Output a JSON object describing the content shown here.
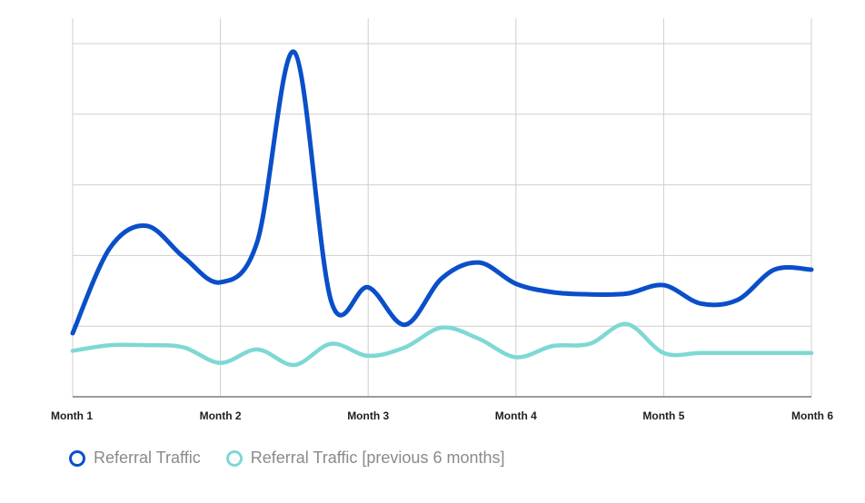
{
  "chart_data": {
    "type": "line",
    "title": "",
    "xlabel": "",
    "ylabel": "",
    "categories": [
      "Month 1",
      "Month 2",
      "Month 3",
      "Month 4",
      "Month 5",
      "Month 6"
    ],
    "x": [
      0,
      0.25,
      0.5,
      0.75,
      1,
      1.25,
      1.5,
      1.75,
      2,
      2.25,
      2.5,
      2.75,
      3,
      3.25,
      3.5,
      3.75,
      4,
      4.25,
      4.5,
      4.75,
      5
    ],
    "xlim": [
      0,
      5
    ],
    "ylim": [
      0,
      5
    ],
    "grid": true,
    "series": [
      {
        "name": "Referral Traffic",
        "color": "#0a4fc9",
        "values": [
          0.9,
          2.1,
          2.42,
          1.98,
          1.62,
          2.2,
          4.88,
          1.35,
          1.55,
          1.02,
          1.68,
          1.9,
          1.6,
          1.48,
          1.45,
          1.46,
          1.58,
          1.32,
          1.37,
          1.8,
          1.8
        ]
      },
      {
        "name": "Referral Traffic [previous 6 months]",
        "color": "#7ed8d3",
        "values": [
          0.65,
          0.73,
          0.73,
          0.7,
          0.48,
          0.67,
          0.45,
          0.75,
          0.58,
          0.7,
          0.98,
          0.82,
          0.56,
          0.72,
          0.75,
          1.03,
          0.62,
          0.62,
          0.62,
          0.62,
          0.62
        ]
      }
    ]
  }
}
